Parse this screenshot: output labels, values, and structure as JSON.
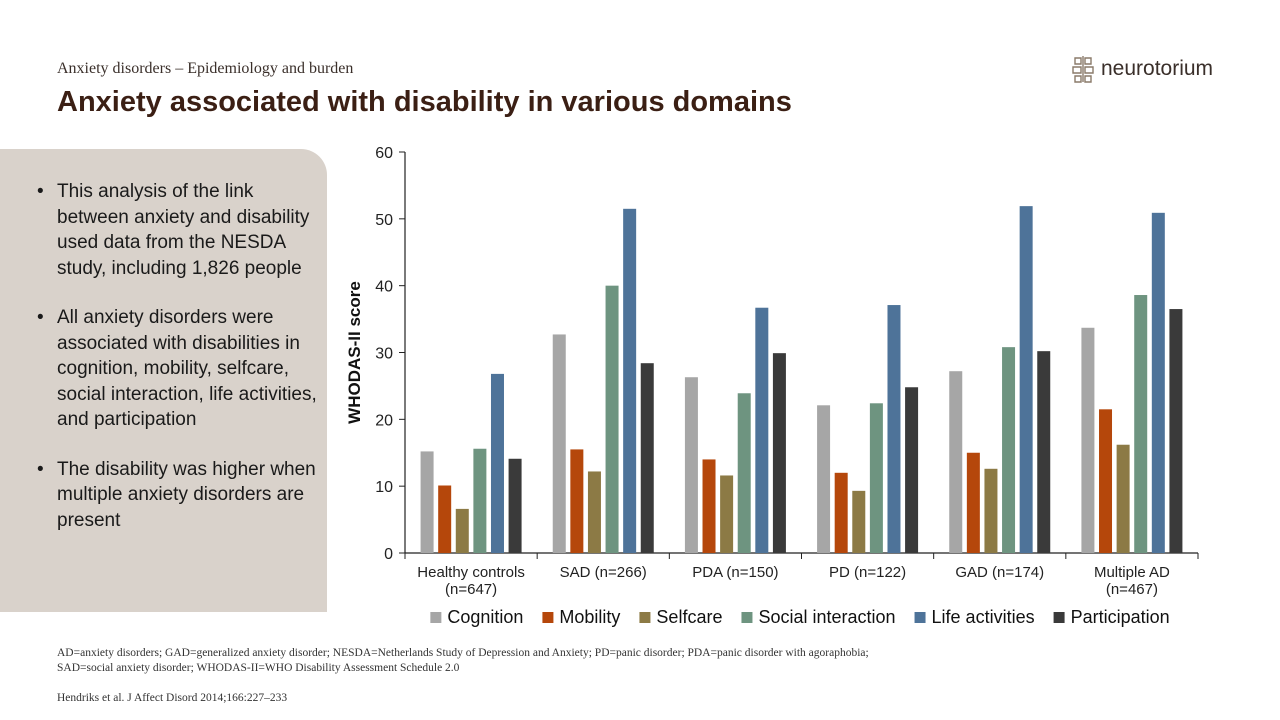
{
  "header": {
    "subtitle": "Anxiety disorders – Epidemiology and burden",
    "title": "Anxiety associated with disability in various domains",
    "logo_text": "neurotorium"
  },
  "bullets": [
    "This analysis of the link between anxiety and disability used data from the NESDA study, including 1,826 people",
    "All anxiety disorders were associated with disabilities in cognition, mobility, selfcare, social interaction, life activities, and participation",
    "The disability was higher when multiple anxiety disorders are present"
  ],
  "chart_data": {
    "type": "bar",
    "ylabel": "WHODAS-II score",
    "xlabel": "",
    "ylim": [
      0,
      60
    ],
    "yticks": [
      0,
      10,
      20,
      30,
      40,
      50,
      60
    ],
    "grid": false,
    "legend_position": "bottom",
    "categories": [
      [
        "Healthy controls",
        "(n=647)"
      ],
      [
        "SAD (n=266)"
      ],
      [
        "PDA (n=150)"
      ],
      [
        "PD (n=122)"
      ],
      [
        "GAD (n=174)"
      ],
      [
        "Multiple AD",
        "(n=467)"
      ]
    ],
    "series": [
      {
        "name": "Cognition",
        "color": "#a6a6a6",
        "values": [
          15.2,
          32.7,
          26.3,
          22.1,
          27.2,
          33.7
        ]
      },
      {
        "name": "Mobility",
        "color": "#b5470b",
        "values": [
          10.1,
          15.5,
          14.0,
          12.0,
          15.0,
          21.5
        ]
      },
      {
        "name": "Selfcare",
        "color": "#8c7a45",
        "values": [
          6.6,
          12.2,
          11.6,
          9.3,
          12.6,
          16.2
        ]
      },
      {
        "name": "Social interaction",
        "color": "#6e9480",
        "values": [
          15.6,
          40.0,
          23.9,
          22.4,
          30.8,
          38.6
        ]
      },
      {
        "name": "Life activities",
        "color": "#4e7399",
        "values": [
          26.8,
          51.5,
          36.7,
          37.1,
          51.9,
          50.9
        ]
      },
      {
        "name": "Participation",
        "color": "#3a3a3a",
        "values": [
          14.1,
          28.4,
          29.9,
          24.8,
          30.2,
          36.5
        ]
      }
    ]
  },
  "footnote": [
    "AD=anxiety disorders; GAD=generalized anxiety disorder; NESDA=Netherlands Study of Depression and Anxiety; PD=panic disorder; PDA=panic disorder with agoraphobia;",
    "SAD=social anxiety disorder; WHODAS-II=WHO Disability Assessment Schedule 2.0"
  ],
  "citation": "Hendriks et al. J Affect Disord 2014;166:227–233"
}
